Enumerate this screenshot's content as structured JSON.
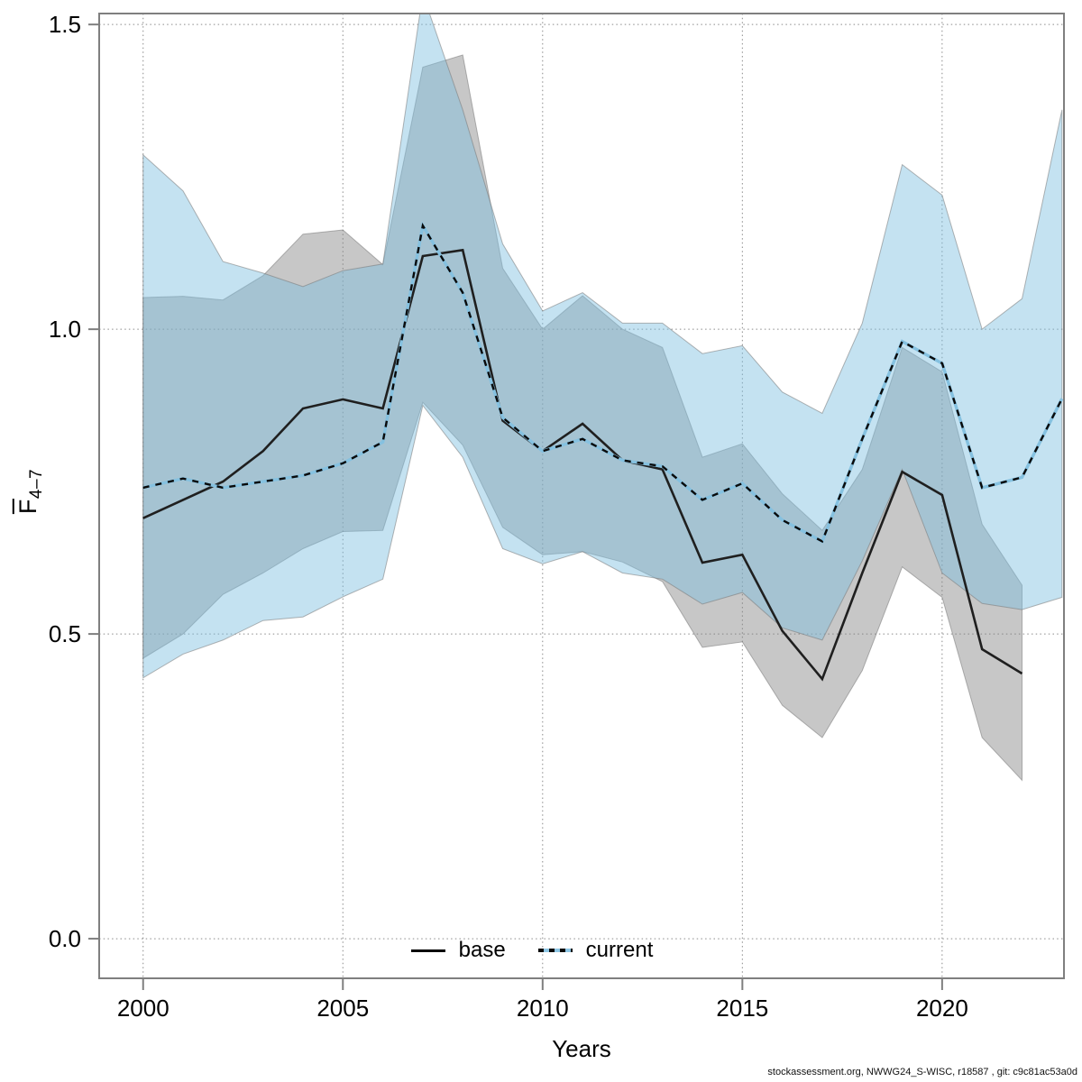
{
  "footer": "stockassessment.org, NWWG24_S-WISC, r18587 , git: c9c81ac53a0d",
  "legend": {
    "base_label": "base",
    "current_label": "current"
  },
  "axes_titles": {
    "xlabel": "Years",
    "ylabel_main": "F",
    "ylabel_sub": "4–7"
  },
  "colors": {
    "base_line": "#1f1f1f",
    "current_line_under": "#85c1e0",
    "current_line_dash": "#0a0a0a",
    "base_band_fill": "rgba(130,130,130,0.45)",
    "current_band_fill": "rgba(125,190,225,0.45)",
    "band_edge": "rgba(120,120,120,0.55)",
    "axis": "#7f7f7f",
    "grid": "#8a8a8a"
  },
  "chart_data": {
    "type": "line",
    "title": "",
    "xlabel": "Years",
    "ylabel": "Fbar(4-7)",
    "xlim": [
      1998.9,
      2023.05
    ],
    "ylim": [
      -0.065,
      1.518
    ],
    "grid": true,
    "legend_position": "bottom-center-inside",
    "x_ticks": {
      "values": [
        2000,
        2005,
        2010,
        2015,
        2020
      ],
      "labels": [
        "2000",
        "2005",
        "2010",
        "2015",
        "2020"
      ]
    },
    "y_ticks": {
      "values": [
        0,
        0.5,
        1,
        1.5
      ],
      "labels": [
        "0.0",
        "0.5",
        "1.0",
        "1.5"
      ]
    },
    "series": [
      {
        "name": "base",
        "line_style": "solid",
        "years": [
          2000,
          2001,
          2002,
          2003,
          2004,
          2005,
          2006,
          2007,
          2008,
          2009,
          2010,
          2011,
          2012,
          2013,
          2014,
          2015,
          2016,
          2017,
          2018,
          2019,
          2020,
          2021,
          2022
        ],
        "values": [
          0.69,
          0.72,
          0.75,
          0.8,
          0.87,
          0.885,
          0.87,
          1.12,
          1.13,
          0.85,
          0.8,
          0.845,
          0.785,
          0.77,
          0.617,
          0.63,
          0.505,
          0.426,
          0.6,
          0.766,
          0.728,
          0.475,
          0.435
        ],
        "ci_low": [
          0.46,
          0.5,
          0.565,
          0.6,
          0.64,
          0.668,
          0.67,
          0.88,
          0.81,
          0.675,
          0.63,
          0.635,
          0.618,
          0.586,
          0.478,
          0.487,
          0.383,
          0.33,
          0.44,
          0.61,
          0.56,
          0.33,
          0.26
        ],
        "ci_high": [
          1.052,
          1.054,
          1.048,
          1.088,
          1.156,
          1.163,
          1.106,
          1.43,
          1.45,
          1.1,
          1.0,
          1.055,
          1.0,
          0.97,
          0.79,
          0.812,
          0.73,
          0.67,
          0.77,
          0.97,
          0.93,
          0.68,
          0.58
        ]
      },
      {
        "name": "current",
        "line_style": "dashed",
        "years": [
          2000,
          2001,
          2002,
          2003,
          2004,
          2005,
          2006,
          2007,
          2008,
          2009,
          2010,
          2011,
          2012,
          2013,
          2014,
          2015,
          2016,
          2017,
          2018,
          2019,
          2020,
          2021,
          2022,
          2023
        ],
        "values": [
          0.74,
          0.755,
          0.74,
          0.75,
          0.76,
          0.78,
          0.815,
          1.17,
          1.06,
          0.855,
          0.8,
          0.82,
          0.785,
          0.775,
          0.72,
          0.747,
          0.687,
          0.652,
          0.82,
          0.98,
          0.944,
          0.74,
          0.757,
          0.886
        ],
        "ci_low": [
          0.428,
          0.467,
          0.49,
          0.522,
          0.528,
          0.561,
          0.59,
          0.875,
          0.79,
          0.64,
          0.615,
          0.635,
          0.6,
          0.59,
          0.549,
          0.568,
          0.51,
          0.49,
          0.62,
          0.77,
          0.6,
          0.55,
          0.54,
          0.56
        ],
        "ci_high": [
          1.286,
          1.227,
          1.111,
          1.092,
          1.07,
          1.096,
          1.107,
          1.55,
          1.36,
          1.14,
          1.03,
          1.06,
          1.01,
          1.01,
          0.96,
          0.973,
          0.897,
          0.862,
          1.01,
          1.27,
          1.22,
          1.0,
          1.05,
          1.36
        ]
      }
    ]
  }
}
